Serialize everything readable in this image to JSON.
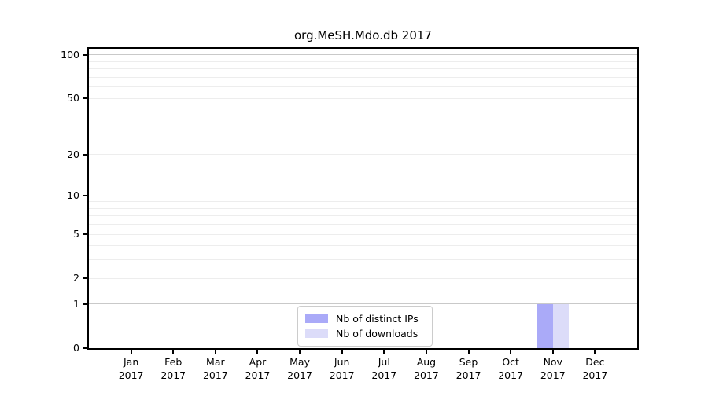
{
  "chart_data": {
    "type": "bar",
    "title": "org.MeSH.Mdo.db 2017",
    "categories": [
      "Jan",
      "Feb",
      "Mar",
      "Apr",
      "May",
      "Jun",
      "Jul",
      "Aug",
      "Sep",
      "Oct",
      "Nov",
      "Dec"
    ],
    "category_year": "2017",
    "series": [
      {
        "name": "Nb of distinct IPs",
        "slug": "distinct-ips",
        "color": "#aaaaf8",
        "values": [
          0,
          0,
          0,
          0,
          0,
          0,
          0,
          0,
          0,
          0,
          1,
          0
        ]
      },
      {
        "name": "Nb of downloads",
        "slug": "downloads",
        "color": "#dcdcf9",
        "values": [
          0,
          0,
          0,
          0,
          0,
          0,
          0,
          0,
          0,
          0,
          1,
          0
        ]
      }
    ],
    "xlabel": "",
    "ylabel": "",
    "yscale": "log1p",
    "ylim": [
      0,
      110.4
    ],
    "yticks": [
      0,
      1,
      2,
      5,
      10,
      20,
      50,
      100
    ],
    "major_gridlines": [
      1,
      10,
      100
    ],
    "minor_gridlines": [
      2,
      3,
      4,
      5,
      6,
      7,
      8,
      9,
      20,
      30,
      40,
      50,
      60,
      70,
      80,
      90
    ],
    "grid": "horizontal",
    "legend_position": "lower center inside",
    "style": {
      "grid_major_color": "#c9c9c9",
      "grid_minor_color": "#ededed",
      "spine_color": "#000000",
      "legend_border_color": "#cccccc",
      "background": "#ffffff"
    }
  }
}
